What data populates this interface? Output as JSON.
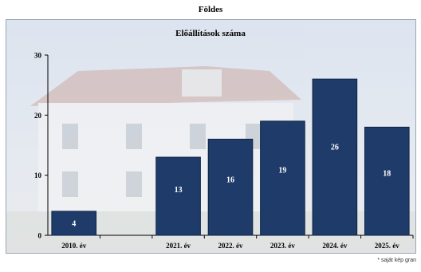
{
  "page": {
    "location_title": "Földes",
    "footnote": "* saját kép gran"
  },
  "colors": {
    "bar_fill": "#1f3b6a",
    "bar_edge": "#0f2346",
    "frame": "#9aa6b8",
    "axis": "#000000"
  },
  "chart_data": {
    "type": "bar",
    "title": "Előállítások száma",
    "xlabel": "",
    "ylabel": "",
    "ylim": [
      0,
      30
    ],
    "yticks": [
      0,
      10,
      20,
      30
    ],
    "categories": [
      "2010. év",
      "",
      "2021. év",
      "2022. év",
      "2023. év",
      "2024. év",
      "2025. év"
    ],
    "values": [
      4,
      null,
      13,
      16,
      19,
      26,
      18
    ],
    "data_labels": [
      "4",
      "",
      "13",
      "16",
      "19",
      "26",
      "18"
    ],
    "grid": false,
    "legend": "none"
  }
}
